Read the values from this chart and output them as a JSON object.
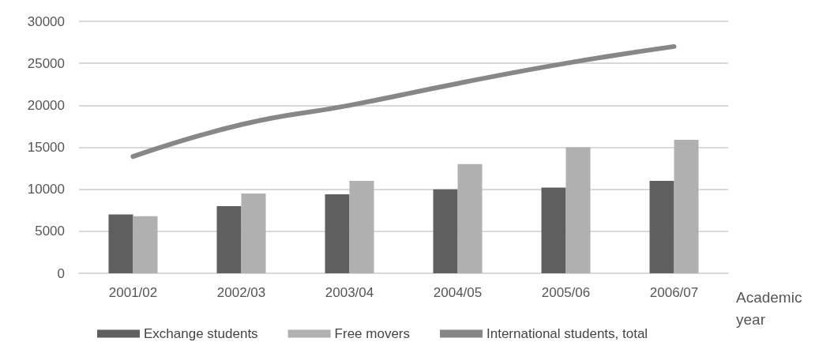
{
  "chart_data": {
    "type": "bar",
    "xlabel": "Academic\nyear",
    "categories": [
      "2001/02",
      "2002/03",
      "2003/04",
      "2004/05",
      "2005/06",
      "2006/07"
    ],
    "series": [
      {
        "name": "Exchange students",
        "color": "#5f5f5f",
        "values": [
          7000,
          8000,
          9400,
          10000,
          10200,
          11000
        ]
      },
      {
        "name": "Free movers",
        "color": "#b0b0b0",
        "values": [
          6800,
          9500,
          11000,
          13000,
          15000,
          15900
        ]
      },
      {
        "name": "International students, total",
        "type": "line",
        "color": "#878787",
        "values": [
          13900,
          17700,
          20000,
          22600,
          25000,
          27000
        ]
      }
    ],
    "ylim": [
      0,
      30000
    ],
    "yticks": [
      0,
      5000,
      10000,
      15000,
      20000,
      25000,
      30000
    ],
    "grid": "y",
    "legend": "bottom",
    "marker": "none"
  }
}
